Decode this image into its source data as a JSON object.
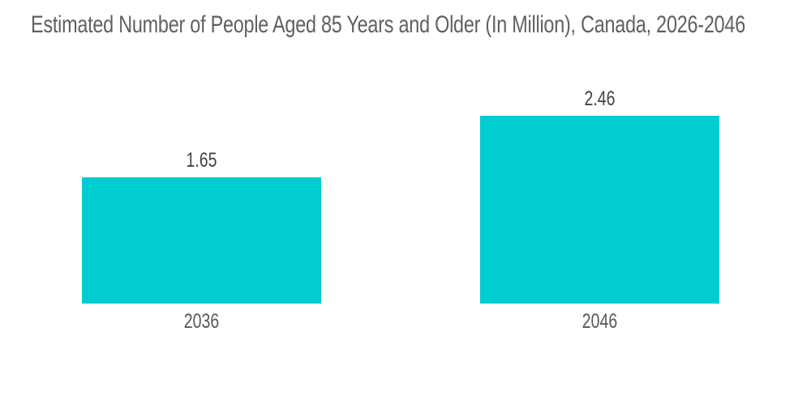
{
  "chart_data": {
    "type": "bar",
    "title": "Estimated Number of People Aged 85 Years and Older (In Million), Canada, 2026-2046",
    "categories": [
      "2036",
      "2046"
    ],
    "values": [
      1.65,
      2.46
    ],
    "value_labels": [
      "1.65",
      "2.46"
    ],
    "unit": "Million",
    "region": "Canada",
    "period": "2026-2046",
    "ylim": [
      0,
      2.46
    ],
    "orientation": "vertical",
    "grid": false,
    "legend": false,
    "axes_visible": false,
    "colors": {
      "bar": "#00CCD2",
      "title": "#5F6062",
      "value_label": "#404145",
      "category_label": "#55575C",
      "background": "#FFFFFF"
    }
  }
}
